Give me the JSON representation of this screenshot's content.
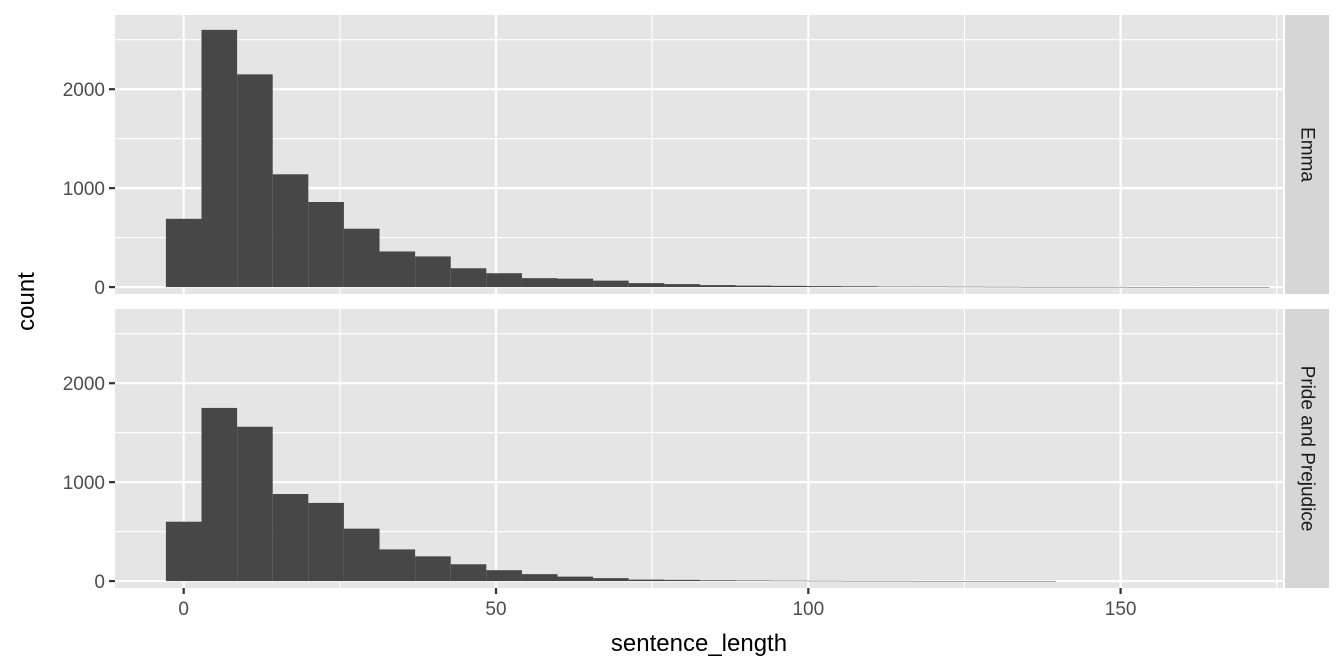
{
  "chart_data": {
    "type": "bar",
    "subtype": "histogram-faceted",
    "xlabel": "sentence_length",
    "ylabel": "count",
    "grid": true,
    "facet_position": "right",
    "x_ticks": [
      0,
      50,
      100,
      150
    ],
    "y_ticks": [
      0,
      1000,
      2000
    ],
    "xlim": [
      -11,
      176
    ],
    "ylim": [
      -70,
      2750
    ],
    "bin_width": 5.7,
    "bin_start": -2.85,
    "facets": [
      {
        "name": "Emma",
        "values": [
          690,
          2600,
          2150,
          1140,
          860,
          590,
          360,
          310,
          190,
          140,
          90,
          85,
          65,
          40,
          30,
          20,
          15,
          12,
          10,
          8,
          5,
          5,
          4,
          3,
          2,
          2,
          2,
          1,
          1,
          1,
          1
        ]
      },
      {
        "name": "Pride and Prejudice",
        "values": [
          600,
          1750,
          1560,
          880,
          790,
          530,
          320,
          250,
          170,
          110,
          70,
          45,
          30,
          15,
          12,
          8,
          6,
          4,
          3,
          2,
          2,
          1,
          1,
          1,
          1,
          0,
          0,
          0,
          0,
          0,
          0
        ]
      }
    ]
  }
}
